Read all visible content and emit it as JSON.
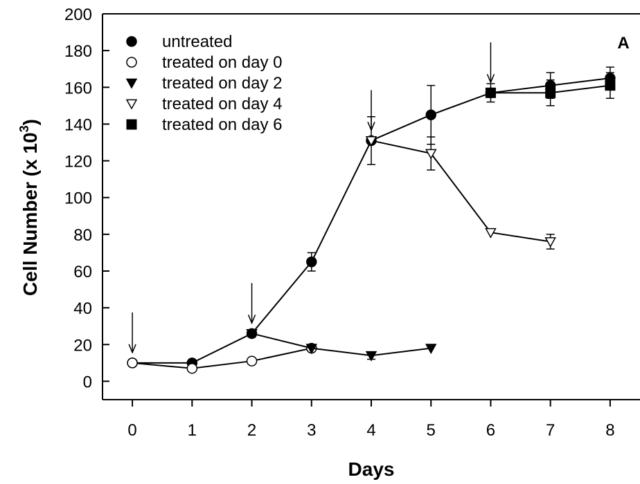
{
  "chart_data": {
    "type": "line",
    "panel_label": "A",
    "xlabel": "Days",
    "ylabel_main": "Cell Number (x 10",
    "ylabel_sup": "3",
    "ylabel_close": ")",
    "xlim": [
      -0.5,
      8.5
    ],
    "ylim": [
      -10,
      200
    ],
    "xticks": [
      "0",
      "1",
      "2",
      "3",
      "4",
      "5",
      "6",
      "7",
      "8"
    ],
    "yticks": [
      "0",
      "20",
      "40",
      "60",
      "80",
      "100",
      "120",
      "140",
      "160",
      "180",
      "200"
    ],
    "grid": false,
    "legend_position": "top-left",
    "treatment_arrows_days": [
      0,
      2,
      4,
      6
    ],
    "series": [
      {
        "name": "untreated",
        "marker": "circle-filled",
        "x": [
          0,
          1,
          2,
          3,
          4,
          5,
          6,
          7,
          8
        ],
        "y": [
          10,
          10,
          26,
          65,
          131,
          145,
          157,
          161,
          165
        ],
        "err": [
          0,
          0,
          2,
          5,
          13,
          16,
          5,
          7,
          6
        ]
      },
      {
        "name": "treated on day 0",
        "marker": "circle-open",
        "x": [
          0,
          1,
          2,
          3
        ],
        "y": [
          10,
          7,
          11,
          18
        ],
        "err": [
          0,
          0,
          0,
          0
        ]
      },
      {
        "name": "treated on day 2",
        "marker": "triangle-down-filled",
        "x": [
          2,
          3,
          4,
          5
        ],
        "y": [
          26,
          18,
          14,
          18
        ],
        "err": [
          0,
          0,
          2,
          0
        ]
      },
      {
        "name": "treated on day 4",
        "marker": "triangle-down-open",
        "x": [
          4,
          5,
          6,
          7
        ],
        "y": [
          131,
          124,
          81,
          76
        ],
        "err": [
          0,
          9,
          0,
          4
        ]
      },
      {
        "name": "treated on day 6",
        "marker": "square-filled",
        "x": [
          6,
          7,
          8
        ],
        "y": [
          157,
          157,
          161
        ],
        "err": [
          0,
          7,
          7
        ]
      }
    ]
  }
}
